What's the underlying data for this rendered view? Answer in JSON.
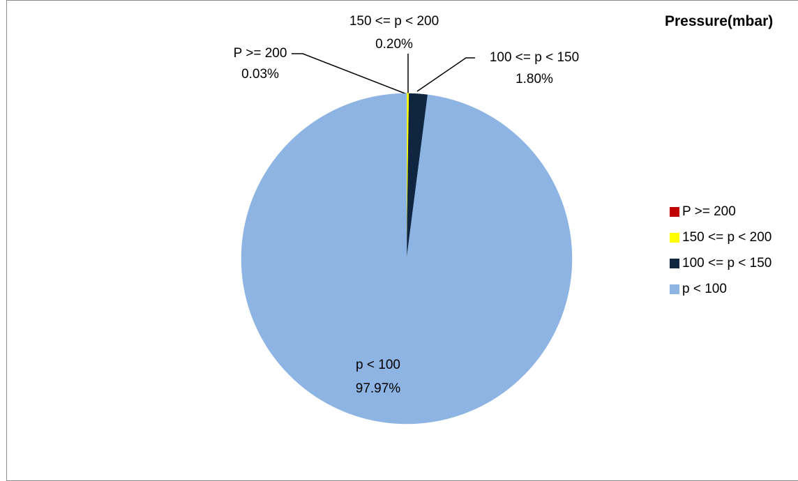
{
  "chart_data": {
    "type": "pie",
    "title": "Pressure(mbar)",
    "slices": [
      {
        "label": "P >= 200",
        "value": 0.03,
        "value_label": "0.03%",
        "color": "#c00000"
      },
      {
        "label": "150 <= p < 200",
        "value": 0.2,
        "value_label": "0.20%",
        "color": "#ffff00"
      },
      {
        "label": "100 <= p < 150",
        "value": 1.8,
        "value_label": "1.80%",
        "color": "#10253f"
      },
      {
        "label": "p < 100",
        "value": 97.97,
        "value_label": "97.97%",
        "color": "#8eb4e3"
      }
    ],
    "legend_position": "right",
    "start": "top, clockwise in legend order"
  }
}
